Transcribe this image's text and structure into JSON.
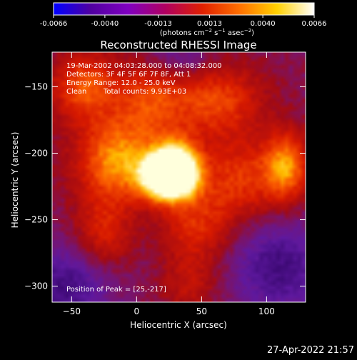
{
  "chart_data": {
    "type": "heatmap",
    "title": "Reconstructed RHESSI Image",
    "xlabel": "Heliocentric X (arcsec)",
    "ylabel": "Heliocentric Y (arcsec)",
    "xlim": [
      -65,
      130
    ],
    "ylim": [
      -312,
      -124
    ],
    "x_ticks": [
      -50,
      0,
      50,
      100
    ],
    "y_ticks": [
      -150,
      -200,
      -250,
      -300
    ],
    "colorbar": {
      "ticks": [
        "-0.0066",
        "-0.0040",
        "-0.0013",
        "0.0013",
        "0.0040",
        "0.0066"
      ],
      "range": [
        -0.0066,
        0.0066
      ],
      "unit_label": {
        "prefix": "(photons cm",
        "exp1": "−2",
        "mid": " s",
        "exp2": "−1",
        "suffix": " asec",
        "exp3": "−2",
        "close": ")"
      },
      "colormap": [
        "#0000ff",
        "#5000a0",
        "#8000c0",
        "#b00060",
        "#e02000",
        "#ff7000",
        "#ffd000",
        "#ffffff"
      ]
    },
    "info_lines": [
      "19-Mar-2002 04:03:28.000 to 04:08:32.000",
      "Detectors: 3F 4F 5F 6F 7F 8F, Att 1",
      "Energy Range: 12.0 - 25.0 keV"
    ],
    "clean_label": "Clean",
    "total_counts": "Total counts: 9.93E+03",
    "peak_label": "Position of Peak = [25,-217]",
    "peak": {
      "x": 25,
      "y": -217
    },
    "sources": [
      {
        "x": 25,
        "y": -217,
        "amp": 1.15,
        "sx": 14,
        "sy": 12
      },
      {
        "x": 32,
        "y": -205,
        "amp": 0.35,
        "sx": 12,
        "sy": 14
      },
      {
        "x": -15,
        "y": -205,
        "amp": 0.45,
        "sx": 22,
        "sy": 22
      },
      {
        "x": -40,
        "y": -150,
        "amp": 0.35,
        "sx": 18,
        "sy": 18
      },
      {
        "x": 10,
        "y": -160,
        "amp": 0.28,
        "sx": 18,
        "sy": 20
      },
      {
        "x": 60,
        "y": -160,
        "amp": 0.32,
        "sx": 25,
        "sy": 20
      },
      {
        "x": 80,
        "y": -220,
        "amp": 0.28,
        "sx": 22,
        "sy": 22
      },
      {
        "x": 115,
        "y": -210,
        "amp": 0.42,
        "sx": 12,
        "sy": 18
      },
      {
        "x": -25,
        "y": -260,
        "amp": 0.22,
        "sx": 15,
        "sy": 20
      },
      {
        "x": 45,
        "y": -255,
        "amp": 0.25,
        "sx": 18,
        "sy": 20
      },
      {
        "x": 40,
        "y": -300,
        "amp": 0.15,
        "sx": 15,
        "sy": 15
      },
      {
        "x": -55,
        "y": -300,
        "amp": -0.25,
        "sx": 25,
        "sy": 20
      },
      {
        "x": 110,
        "y": -285,
        "amp": -0.25,
        "sx": 25,
        "sy": 25
      },
      {
        "x": 35,
        "y": -130,
        "amp": -0.15,
        "sx": 20,
        "sy": 12
      }
    ]
  },
  "footer": {
    "timestamp": "27-Apr-2022 21:57"
  }
}
